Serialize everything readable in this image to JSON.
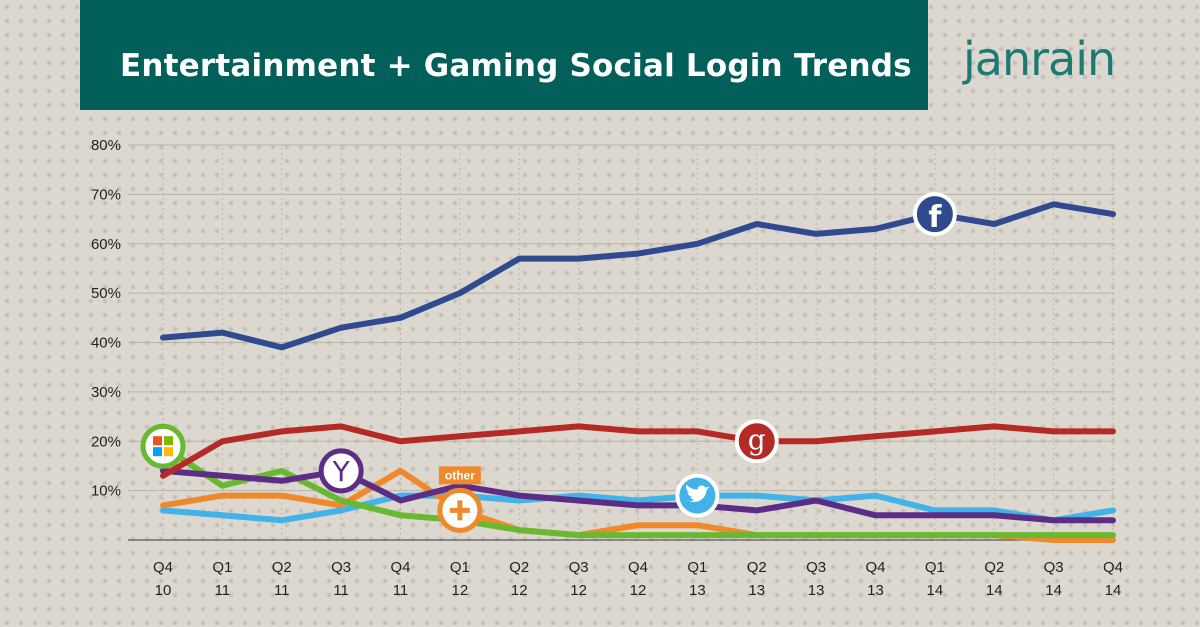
{
  "header": {
    "title": "Entertainment + Gaming Social Login Trends",
    "brand": "janrain"
  },
  "colors": {
    "banner": "#035f59",
    "brand": "#1d7a73",
    "facebook": "#2f4a8f",
    "google": "#b52a25",
    "yahoo": "#5c2d84",
    "microsoft": "#68b931",
    "other": "#ef8a2c",
    "twitter": "#41b3e8"
  },
  "chart_data": {
    "type": "line",
    "x": [
      "Q4 10",
      "Q1 11",
      "Q2 11",
      "Q3 11",
      "Q4 11",
      "Q1 12",
      "Q2 12",
      "Q3 12",
      "Q4 12",
      "Q1 13",
      "Q2 13",
      "Q3 13",
      "Q4 13",
      "Q1 14",
      "Q2 14",
      "Q3 14",
      "Q4 14"
    ],
    "x_tick_labels": [
      [
        "Q4",
        "10"
      ],
      [
        "Q1",
        "11"
      ],
      [
        "Q2",
        "11"
      ],
      [
        "Q3",
        "11"
      ],
      [
        "Q4",
        "11"
      ],
      [
        "Q1",
        "12"
      ],
      [
        "Q2",
        "12"
      ],
      [
        "Q3",
        "12"
      ],
      [
        "Q4",
        "12"
      ],
      [
        "Q1",
        "13"
      ],
      [
        "Q2",
        "13"
      ],
      [
        "Q3",
        "13"
      ],
      [
        "Q4",
        "13"
      ],
      [
        "Q1",
        "14"
      ],
      [
        "Q2",
        "14"
      ],
      [
        "Q3",
        "14"
      ],
      [
        "Q4",
        "14"
      ]
    ],
    "y_ticks": [
      "80%",
      "70%",
      "60%",
      "50%",
      "40%",
      "30%",
      "20%",
      "10%"
    ],
    "y_tick_values": [
      80,
      70,
      60,
      50,
      40,
      30,
      20,
      10
    ],
    "ylim": [
      0,
      80
    ],
    "grid": true,
    "series": [
      {
        "id": "twitter",
        "icon": "twitter-icon",
        "color": "#41b3e8",
        "values": [
          6,
          5,
          4,
          6,
          9,
          9,
          8,
          9,
          8,
          9,
          9,
          8,
          9,
          6,
          6,
          4,
          6
        ],
        "marker_index": 9
      },
      {
        "id": "other",
        "icon": "plus-icon",
        "label": "other",
        "color": "#ef8a2c",
        "values": [
          7,
          9,
          9,
          7,
          14,
          6,
          2,
          1,
          3,
          3,
          1,
          1,
          1,
          1,
          1,
          0,
          0
        ],
        "marker_index": 5
      },
      {
        "id": "microsoft",
        "icon": "windows-icon",
        "color": "#68b931",
        "values": [
          19,
          11,
          14,
          8,
          5,
          4,
          2,
          1,
          1,
          1,
          1,
          1,
          1,
          1,
          1,
          1,
          1
        ],
        "marker_index": 0
      },
      {
        "id": "yahoo",
        "icon": "yahoo-icon",
        "color": "#5c2d84",
        "values": [
          14,
          13,
          12,
          14,
          8,
          11,
          9,
          8,
          7,
          7,
          6,
          8,
          5,
          5,
          5,
          4,
          4
        ],
        "marker_index": 3
      },
      {
        "id": "google",
        "icon": "google-icon",
        "color": "#b52a25",
        "values": [
          13,
          20,
          22,
          23,
          20,
          21,
          22,
          23,
          22,
          22,
          20,
          20,
          21,
          22,
          23,
          22,
          22
        ],
        "marker_index": 10
      },
      {
        "id": "facebook",
        "icon": "facebook-icon",
        "color": "#2f4a8f",
        "values": [
          41,
          42,
          39,
          43,
          45,
          50,
          57,
          57,
          58,
          60,
          64,
          62,
          63,
          66,
          64,
          68,
          66
        ],
        "marker_index": 13
      }
    ]
  }
}
